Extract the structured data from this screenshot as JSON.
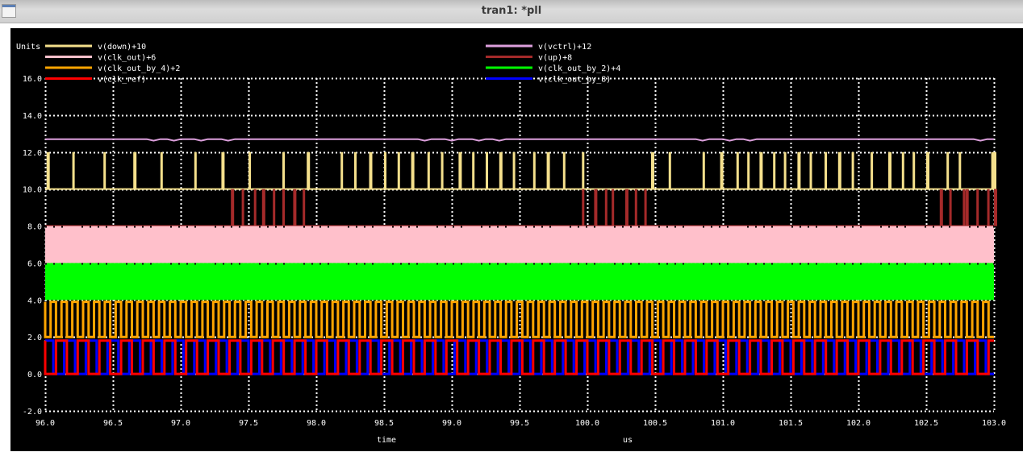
{
  "window": {
    "title": "tran1: *pll",
    "icon": "window-icon"
  },
  "plot": {
    "units_label": "Units",
    "xlabel": "time",
    "xunit": "us",
    "background": "#000000",
    "grid_color": "#ffffff"
  },
  "legend": [
    {
      "label": "v(down)+10",
      "color": "#f5e08c",
      "column": 0,
      "row": 0
    },
    {
      "label": "v(clk_out)+6",
      "color": "#ffc0cb",
      "column": 0,
      "row": 1
    },
    {
      "label": "v(clk_out_by_4)+2",
      "color": "#ffa500",
      "column": 0,
      "row": 2
    },
    {
      "label": "v(clk_ref)",
      "color": "#ff0000",
      "column": 0,
      "row": 3
    },
    {
      "label": "v(vctrl)+12",
      "color": "#dda0dd",
      "column": 1,
      "row": 0
    },
    {
      "label": "v(up)+8",
      "color": "#a52a2a",
      "column": 1,
      "row": 1
    },
    {
      "label": "v(clk_out_by_2)+4",
      "color": "#00ff00",
      "column": 1,
      "row": 2
    },
    {
      "label": "v(clk_out_by_8)",
      "color": "#0000ff",
      "column": 1,
      "row": 3
    }
  ],
  "chart_data": {
    "type": "line",
    "title": "tran1: *pll",
    "xlabel": "time",
    "xunit": "us",
    "ylabel": "Units",
    "xlim": [
      96.0,
      103.0
    ],
    "ylim": [
      -2.0,
      16.0
    ],
    "x_ticks": [
      "96.0",
      "96.5",
      "97.0",
      "97.5",
      "98.0",
      "98.5",
      "99.0",
      "99.5",
      "100.0",
      "100.5",
      "101.0",
      "101.5",
      "102.0",
      "102.5",
      "103.0"
    ],
    "y_ticks": [
      "16.0",
      "14.0",
      "12.0",
      "10.0",
      "8.0",
      "6.0",
      "4.0",
      "2.0",
      "0.0",
      "-2.0"
    ],
    "grid": "dotted",
    "legend_position": "top",
    "series": [
      {
        "name": "v(vctrl)+12",
        "kind": "level",
        "low": 12.7,
        "high": 12.7,
        "note": "nearly constant ~12.7 with small ripple"
      },
      {
        "name": "v(down)+10",
        "kind": "pulses",
        "low": 10.0,
        "high": 12.0,
        "pulse_times": [
          96.01,
          96.2,
          96.43,
          96.65,
          96.85,
          97.1,
          97.3,
          97.5,
          97.75,
          97.93,
          98.18,
          98.28,
          98.39,
          98.5,
          98.6,
          98.7,
          98.82,
          98.92,
          99.05,
          99.15,
          99.25,
          99.35,
          99.45,
          99.6,
          99.7,
          99.82,
          99.96,
          100.47,
          100.6,
          100.85,
          100.98,
          101.1,
          101.18,
          101.27,
          101.37,
          101.45,
          101.55,
          101.64,
          101.75,
          101.85,
          101.95,
          102.09,
          102.22,
          102.32,
          102.4,
          102.5,
          102.65,
          102.74,
          102.98,
          103.0
        ]
      },
      {
        "name": "v(up)+8",
        "kind": "pulses",
        "low": 8.0,
        "high": 10.0,
        "pulse_times": [
          97.37,
          97.45,
          97.54,
          97.6,
          97.68,
          97.75,
          97.83,
          97.9,
          99.96,
          100.05,
          100.13,
          100.18,
          100.28,
          100.35,
          100.42,
          102.6,
          102.67,
          102.77,
          102.79,
          102.87,
          102.95,
          103.0
        ]
      },
      {
        "name": "v(clk_out)+6",
        "kind": "fast_clock",
        "low": 6.0,
        "high": 8.0,
        "period_us": 0.02
      },
      {
        "name": "v(clk_out_by_2)+4",
        "kind": "fast_clock",
        "low": 4.0,
        "high": 6.0,
        "period_us": 0.04
      },
      {
        "name": "v(clk_out_by_4)+2",
        "kind": "clock",
        "low": 2.0,
        "high": 3.9,
        "period_us": 0.08
      },
      {
        "name": "v(clk_ref)",
        "kind": "clock",
        "low": 0.0,
        "high": 1.8,
        "period_us": 0.16
      },
      {
        "name": "v(clk_out_by_8)",
        "kind": "clock",
        "low": 0.0,
        "high": 1.8,
        "period_us": 0.16,
        "phase_us": 0.06
      }
    ]
  }
}
